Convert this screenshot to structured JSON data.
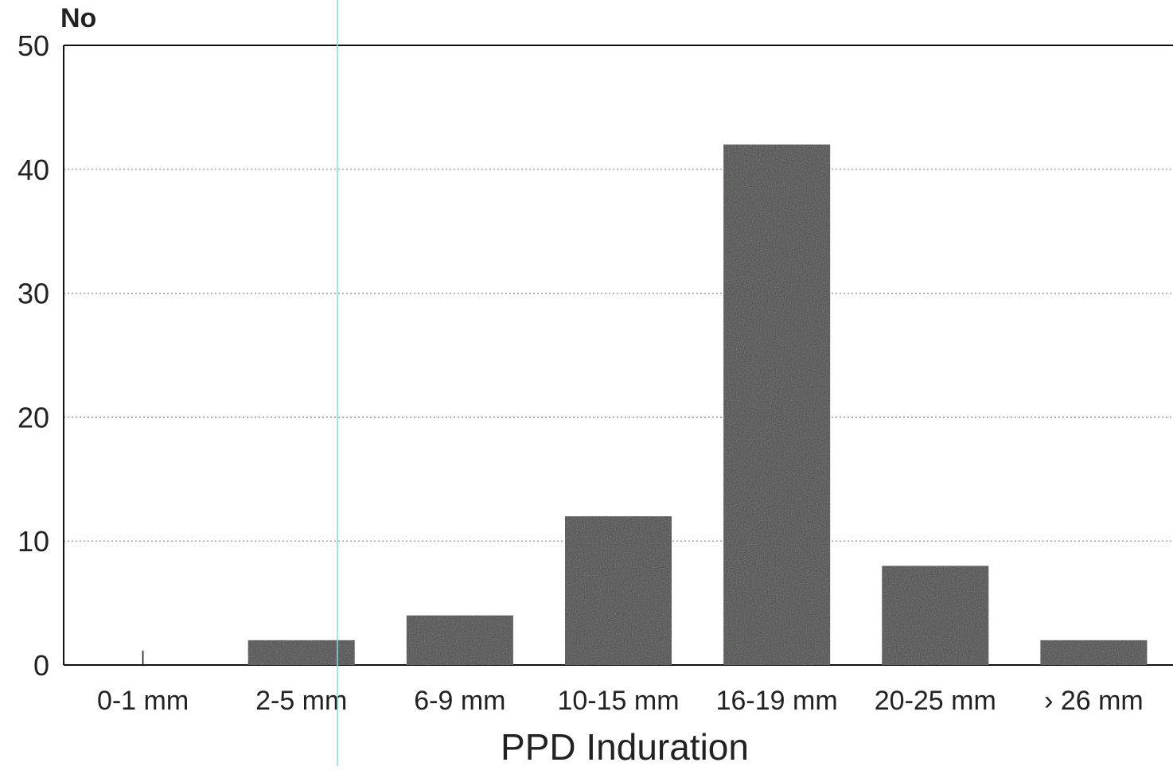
{
  "chart_data": {
    "type": "bar",
    "categories": [
      "0-1 mm",
      "2-5 mm",
      "6-9 mm",
      "10-15 mm",
      "16-19 mm",
      "20-25 mm",
      "› 26 mm"
    ],
    "values": [
      0,
      2,
      4,
      12,
      42,
      8,
      2
    ],
    "xlabel": "PPD Induration",
    "ylabel": "No",
    "ylim": [
      0,
      50
    ],
    "yticks": [
      0,
      10,
      20,
      30,
      40,
      50
    ],
    "grid": true,
    "legend": "none"
  },
  "colors": {
    "bar": "#3a3d3b",
    "axis": "#111111",
    "grid": "#888888",
    "text": "#222222",
    "overlay_line": "#7fdde0"
  }
}
